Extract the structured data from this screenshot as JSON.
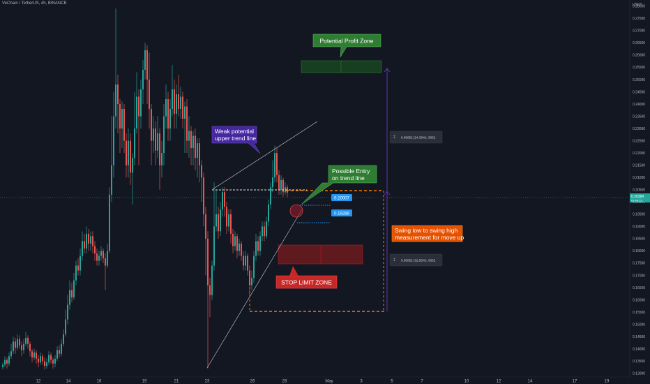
{
  "header": {
    "symbol_line": "VeChain / TetherUS, 4h, BINANCE"
  },
  "price_scale": {
    "unit": "USDT",
    "current_price": "0.20384",
    "current_price_sub": "01:46:13",
    "ticks": [
      "0.28000",
      "0.27500",
      "0.27000",
      "0.26500",
      "0.26000",
      "0.25500",
      "0.25000",
      "0.24500",
      "0.24000",
      "0.23500",
      "0.23000",
      "0.22500",
      "0.22000",
      "0.21500",
      "0.21000",
      "0.20500",
      "0.20000",
      "0.19500",
      "0.19000",
      "0.18500",
      "0.18000",
      "0.17500",
      "0.17000",
      "0.16500",
      "0.16000",
      "0.15500",
      "0.15000",
      "0.14500",
      "0.14000",
      "0.13500",
      "0.13000"
    ]
  },
  "time_axis": {
    "labels": [
      "12",
      "14",
      "16",
      "19",
      "21",
      "23",
      "26",
      "28",
      "May",
      "3",
      "5",
      "7",
      "10",
      "12",
      "14",
      "17",
      "19"
    ]
  },
  "annotations": {
    "profit_zone": "Potential Profit Zone",
    "weak_line_1": "Weak potential",
    "weak_line_2": "upper trend line",
    "entry_1": "Possible Entry",
    "entry_2": "on trend line",
    "stop_zone": "STOP LIMIT ZONE",
    "swing_1": "Swing low to swing high",
    "swing_2": "measurement for move up",
    "price_tag_1": "0.20007",
    "price_tag_2": "0.19288",
    "measure_up": "0.05052 (24.39%), 5052",
    "measure_down": "0.05052 (32.55%), 5052"
  },
  "colors": {
    "background": "#131722",
    "up": "#26a69a",
    "down": "#ef5350",
    "profit": "#2e7d32",
    "stop": "#b71c1c",
    "purple": "#5e35b1",
    "orange": "#f57c00",
    "blue_tag": "#2196f3"
  },
  "chart_data": {
    "type": "candlestick",
    "title": "VeChain / TetherUS, 4h, BINANCE",
    "ylabel": "USDT",
    "ylim": [
      0.1285,
      0.2825
    ],
    "candles": [
      {
        "x": 4,
        "o": 0.1325,
        "c": 0.1335,
        "h": 0.1345,
        "l": 0.1315
      },
      {
        "x": 7,
        "o": 0.1335,
        "c": 0.1355,
        "h": 0.137,
        "l": 0.1325
      },
      {
        "x": 10,
        "o": 0.1355,
        "c": 0.134,
        "h": 0.1365,
        "l": 0.132
      },
      {
        "x": 13,
        "o": 0.134,
        "c": 0.137,
        "h": 0.1385,
        "l": 0.133
      },
      {
        "x": 16,
        "o": 0.137,
        "c": 0.139,
        "h": 0.142,
        "l": 0.136
      },
      {
        "x": 19,
        "o": 0.139,
        "c": 0.143,
        "h": 0.145,
        "l": 0.138
      },
      {
        "x": 22,
        "o": 0.143,
        "c": 0.1405,
        "h": 0.1445,
        "l": 0.138
      },
      {
        "x": 25,
        "o": 0.1405,
        "c": 0.144,
        "h": 0.146,
        "l": 0.1395
      },
      {
        "x": 28,
        "o": 0.144,
        "c": 0.1415,
        "h": 0.1455,
        "l": 0.14
      },
      {
        "x": 31,
        "o": 0.1415,
        "c": 0.1395,
        "h": 0.143,
        "l": 0.137
      },
      {
        "x": 34,
        "o": 0.1395,
        "c": 0.142,
        "h": 0.144,
        "l": 0.138
      },
      {
        "x": 37,
        "o": 0.142,
        "c": 0.1445,
        "h": 0.147,
        "l": 0.141
      },
      {
        "x": 40,
        "o": 0.1445,
        "c": 0.142,
        "h": 0.1455,
        "l": 0.14
      },
      {
        "x": 43,
        "o": 0.142,
        "c": 0.139,
        "h": 0.143,
        "l": 0.137
      },
      {
        "x": 46,
        "o": 0.139,
        "c": 0.1365,
        "h": 0.14,
        "l": 0.1345
      },
      {
        "x": 49,
        "o": 0.1365,
        "c": 0.1385,
        "h": 0.14,
        "l": 0.1355
      },
      {
        "x": 52,
        "o": 0.1385,
        "c": 0.136,
        "h": 0.1395,
        "l": 0.134
      },
      {
        "x": 55,
        "o": 0.136,
        "c": 0.1345,
        "h": 0.1375,
        "l": 0.1325
      },
      {
        "x": 58,
        "o": 0.1345,
        "c": 0.137,
        "h": 0.1385,
        "l": 0.1335
      },
      {
        "x": 61,
        "o": 0.137,
        "c": 0.135,
        "h": 0.138,
        "l": 0.1335
      },
      {
        "x": 64,
        "o": 0.135,
        "c": 0.133,
        "h": 0.1365,
        "l": 0.1315
      },
      {
        "x": 67,
        "o": 0.133,
        "c": 0.1345,
        "h": 0.136,
        "l": 0.132
      },
      {
        "x": 70,
        "o": 0.1345,
        "c": 0.1375,
        "h": 0.139,
        "l": 0.1335
      },
      {
        "x": 73,
        "o": 0.1375,
        "c": 0.1355,
        "h": 0.1385,
        "l": 0.134
      },
      {
        "x": 76,
        "o": 0.1355,
        "c": 0.134,
        "h": 0.1365,
        "l": 0.132
      },
      {
        "x": 79,
        "o": 0.134,
        "c": 0.136,
        "h": 0.1375,
        "l": 0.1325
      },
      {
        "x": 82,
        "o": 0.136,
        "c": 0.1395,
        "h": 0.141,
        "l": 0.135
      },
      {
        "x": 85,
        "o": 0.1395,
        "c": 0.138,
        "h": 0.1415,
        "l": 0.1365
      },
      {
        "x": 88,
        "o": 0.138,
        "c": 0.142,
        "h": 0.144,
        "l": 0.137
      },
      {
        "x": 91,
        "o": 0.142,
        "c": 0.146,
        "h": 0.148,
        "l": 0.141
      },
      {
        "x": 94,
        "o": 0.146,
        "c": 0.152,
        "h": 0.156,
        "l": 0.145
      },
      {
        "x": 97,
        "o": 0.152,
        "c": 0.158,
        "h": 0.162,
        "l": 0.15
      },
      {
        "x": 100,
        "o": 0.158,
        "c": 0.164,
        "h": 0.168,
        "l": 0.156
      },
      {
        "x": 103,
        "o": 0.164,
        "c": 0.161,
        "h": 0.167,
        "l": 0.159
      },
      {
        "x": 106,
        "o": 0.161,
        "c": 0.168,
        "h": 0.171,
        "l": 0.16
      },
      {
        "x": 109,
        "o": 0.168,
        "c": 0.174,
        "h": 0.176,
        "l": 0.166
      },
      {
        "x": 112,
        "o": 0.174,
        "c": 0.172,
        "h": 0.177,
        "l": 0.17
      },
      {
        "x": 115,
        "o": 0.172,
        "c": 0.178,
        "h": 0.181,
        "l": 0.17
      },
      {
        "x": 118,
        "o": 0.178,
        "c": 0.184,
        "h": 0.188,
        "l": 0.176
      },
      {
        "x": 121,
        "o": 0.184,
        "c": 0.181,
        "h": 0.187,
        "l": 0.179
      },
      {
        "x": 124,
        "o": 0.181,
        "c": 0.187,
        "h": 0.19,
        "l": 0.179
      },
      {
        "x": 127,
        "o": 0.187,
        "c": 0.183,
        "h": 0.189,
        "l": 0.18
      },
      {
        "x": 130,
        "o": 0.183,
        "c": 0.186,
        "h": 0.188,
        "l": 0.18
      },
      {
        "x": 133,
        "o": 0.186,
        "c": 0.182,
        "h": 0.188,
        "l": 0.179
      },
      {
        "x": 136,
        "o": 0.182,
        "c": 0.179,
        "h": 0.184,
        "l": 0.176
      },
      {
        "x": 139,
        "o": 0.179,
        "c": 0.176,
        "h": 0.181,
        "l": 0.174
      },
      {
        "x": 142,
        "o": 0.176,
        "c": 0.178,
        "h": 0.18,
        "l": 0.174
      },
      {
        "x": 145,
        "o": 0.178,
        "c": 0.18,
        "h": 0.182,
        "l": 0.176
      },
      {
        "x": 148,
        "o": 0.18,
        "c": 0.177,
        "h": 0.181,
        "l": 0.175
      },
      {
        "x": 151,
        "o": 0.177,
        "c": 0.174,
        "h": 0.179,
        "l": 0.164
      },
      {
        "x": 154,
        "o": 0.174,
        "c": 0.18,
        "h": 0.183,
        "l": 0.173
      },
      {
        "x": 157,
        "o": 0.18,
        "c": 0.203,
        "h": 0.206,
        "l": 0.179
      },
      {
        "x": 160,
        "o": 0.203,
        "c": 0.215,
        "h": 0.235,
        "l": 0.2
      },
      {
        "x": 163,
        "o": 0.215,
        "c": 0.235,
        "h": 0.245,
        "l": 0.21
      },
      {
        "x": 166,
        "o": 0.235,
        "c": 0.248,
        "h": 0.279,
        "l": 0.23
      },
      {
        "x": 169,
        "o": 0.248,
        "c": 0.24,
        "h": 0.252,
        "l": 0.228
      },
      {
        "x": 172,
        "o": 0.24,
        "c": 0.23,
        "h": 0.242,
        "l": 0.22
      },
      {
        "x": 175,
        "o": 0.23,
        "c": 0.238,
        "h": 0.241,
        "l": 0.222
      },
      {
        "x": 178,
        "o": 0.238,
        "c": 0.225,
        "h": 0.24,
        "l": 0.22
      },
      {
        "x": 181,
        "o": 0.225,
        "c": 0.215,
        "h": 0.228,
        "l": 0.21
      },
      {
        "x": 184,
        "o": 0.215,
        "c": 0.225,
        "h": 0.23,
        "l": 0.21
      },
      {
        "x": 187,
        "o": 0.225,
        "c": 0.212,
        "h": 0.228,
        "l": 0.207
      },
      {
        "x": 190,
        "o": 0.212,
        "c": 0.218,
        "h": 0.22,
        "l": 0.199
      },
      {
        "x": 193,
        "o": 0.218,
        "c": 0.23,
        "h": 0.245,
        "l": 0.215
      },
      {
        "x": 196,
        "o": 0.23,
        "c": 0.243,
        "h": 0.253,
        "l": 0.228
      },
      {
        "x": 199,
        "o": 0.243,
        "c": 0.235,
        "h": 0.246,
        "l": 0.215
      },
      {
        "x": 202,
        "o": 0.235,
        "c": 0.246,
        "h": 0.25,
        "l": 0.23
      },
      {
        "x": 205,
        "o": 0.246,
        "c": 0.254,
        "h": 0.258,
        "l": 0.24
      },
      {
        "x": 208,
        "o": 0.254,
        "c": 0.262,
        "h": 0.265,
        "l": 0.25
      },
      {
        "x": 211,
        "o": 0.262,
        "c": 0.25,
        "h": 0.264,
        "l": 0.24
      },
      {
        "x": 214,
        "o": 0.25,
        "c": 0.238,
        "h": 0.261,
        "l": 0.23
      },
      {
        "x": 217,
        "o": 0.238,
        "c": 0.225,
        "h": 0.24,
        "l": 0.215
      },
      {
        "x": 220,
        "o": 0.225,
        "c": 0.23,
        "h": 0.235,
        "l": 0.22
      },
      {
        "x": 223,
        "o": 0.23,
        "c": 0.221,
        "h": 0.233,
        "l": 0.215
      },
      {
        "x": 226,
        "o": 0.221,
        "c": 0.228,
        "h": 0.235,
        "l": 0.218
      },
      {
        "x": 229,
        "o": 0.228,
        "c": 0.215,
        "h": 0.23,
        "l": 0.205
      },
      {
        "x": 232,
        "o": 0.215,
        "c": 0.22,
        "h": 0.225,
        "l": 0.21
      },
      {
        "x": 235,
        "o": 0.22,
        "c": 0.235,
        "h": 0.24,
        "l": 0.215
      },
      {
        "x": 238,
        "o": 0.235,
        "c": 0.242,
        "h": 0.248,
        "l": 0.23
      },
      {
        "x": 241,
        "o": 0.242,
        "c": 0.23,
        "h": 0.245,
        "l": 0.225
      },
      {
        "x": 244,
        "o": 0.23,
        "c": 0.238,
        "h": 0.242,
        "l": 0.225
      },
      {
        "x": 247,
        "o": 0.238,
        "c": 0.246,
        "h": 0.256,
        "l": 0.235
      },
      {
        "x": 250,
        "o": 0.246,
        "c": 0.236,
        "h": 0.25,
        "l": 0.23
      },
      {
        "x": 253,
        "o": 0.236,
        "c": 0.244,
        "h": 0.248,
        "l": 0.23
      },
      {
        "x": 256,
        "o": 0.244,
        "c": 0.238,
        "h": 0.252,
        "l": 0.235
      },
      {
        "x": 259,
        "o": 0.238,
        "c": 0.243,
        "h": 0.247,
        "l": 0.234
      },
      {
        "x": 262,
        "o": 0.243,
        "c": 0.234,
        "h": 0.245,
        "l": 0.23
      },
      {
        "x": 265,
        "o": 0.234,
        "c": 0.239,
        "h": 0.241,
        "l": 0.22
      },
      {
        "x": 268,
        "o": 0.239,
        "c": 0.225,
        "h": 0.242,
        "l": 0.22
      },
      {
        "x": 271,
        "o": 0.225,
        "c": 0.229,
        "h": 0.235,
        "l": 0.218
      },
      {
        "x": 274,
        "o": 0.229,
        "c": 0.222,
        "h": 0.231,
        "l": 0.215
      },
      {
        "x": 277,
        "o": 0.222,
        "c": 0.227,
        "h": 0.229,
        "l": 0.215
      },
      {
        "x": 280,
        "o": 0.227,
        "c": 0.218,
        "h": 0.23,
        "l": 0.213
      },
      {
        "x": 283,
        "o": 0.218,
        "c": 0.224,
        "h": 0.226,
        "l": 0.21
      },
      {
        "x": 286,
        "o": 0.224,
        "c": 0.215,
        "h": 0.226,
        "l": 0.208
      },
      {
        "x": 289,
        "o": 0.215,
        "c": 0.21,
        "h": 0.217,
        "l": 0.2
      },
      {
        "x": 292,
        "o": 0.21,
        "c": 0.195,
        "h": 0.212,
        "l": 0.19
      },
      {
        "x": 295,
        "o": 0.195,
        "c": 0.185,
        "h": 0.198,
        "l": 0.17
      },
      {
        "x": 298,
        "o": 0.185,
        "c": 0.166,
        "h": 0.188,
        "l": 0.132
      },
      {
        "x": 301,
        "o": 0.166,
        "c": 0.162,
        "h": 0.169,
        "l": 0.153
      },
      {
        "x": 304,
        "o": 0.162,
        "c": 0.174,
        "h": 0.176,
        "l": 0.16
      },
      {
        "x": 307,
        "o": 0.174,
        "c": 0.19,
        "h": 0.208,
        "l": 0.172
      },
      {
        "x": 310,
        "o": 0.19,
        "c": 0.195,
        "h": 0.205,
        "l": 0.188
      },
      {
        "x": 313,
        "o": 0.195,
        "c": 0.188,
        "h": 0.198,
        "l": 0.185
      },
      {
        "x": 316,
        "o": 0.188,
        "c": 0.197,
        "h": 0.2,
        "l": 0.186
      },
      {
        "x": 319,
        "o": 0.197,
        "c": 0.204,
        "h": 0.206,
        "l": 0.194
      },
      {
        "x": 322,
        "o": 0.204,
        "c": 0.198,
        "h": 0.206,
        "l": 0.194
      },
      {
        "x": 325,
        "o": 0.198,
        "c": 0.19,
        "h": 0.2,
        "l": 0.187
      },
      {
        "x": 328,
        "o": 0.19,
        "c": 0.195,
        "h": 0.197,
        "l": 0.188
      },
      {
        "x": 331,
        "o": 0.195,
        "c": 0.187,
        "h": 0.197,
        "l": 0.183
      },
      {
        "x": 334,
        "o": 0.187,
        "c": 0.182,
        "h": 0.189,
        "l": 0.179
      },
      {
        "x": 337,
        "o": 0.182,
        "c": 0.186,
        "h": 0.188,
        "l": 0.18
      },
      {
        "x": 340,
        "o": 0.186,
        "c": 0.18,
        "h": 0.187,
        "l": 0.177
      },
      {
        "x": 343,
        "o": 0.18,
        "c": 0.183,
        "h": 0.185,
        "l": 0.178
      },
      {
        "x": 346,
        "o": 0.183,
        "c": 0.178,
        "h": 0.184,
        "l": 0.176
      },
      {
        "x": 349,
        "o": 0.178,
        "c": 0.174,
        "h": 0.18,
        "l": 0.172
      },
      {
        "x": 352,
        "o": 0.174,
        "c": 0.178,
        "h": 0.18,
        "l": 0.172
      },
      {
        "x": 355,
        "o": 0.178,
        "c": 0.172,
        "h": 0.179,
        "l": 0.17
      },
      {
        "x": 358,
        "o": 0.172,
        "c": 0.166,
        "h": 0.174,
        "l": 0.162
      },
      {
        "x": 361,
        "o": 0.166,
        "c": 0.169,
        "h": 0.172,
        "l": 0.164
      },
      {
        "x": 364,
        "o": 0.169,
        "c": 0.178,
        "h": 0.18,
        "l": 0.167
      },
      {
        "x": 367,
        "o": 0.178,
        "c": 0.184,
        "h": 0.187,
        "l": 0.176
      },
      {
        "x": 370,
        "o": 0.184,
        "c": 0.18,
        "h": 0.186,
        "l": 0.178
      },
      {
        "x": 373,
        "o": 0.18,
        "c": 0.186,
        "h": 0.188,
        "l": 0.178
      },
      {
        "x": 376,
        "o": 0.186,
        "c": 0.19,
        "h": 0.192,
        "l": 0.184
      },
      {
        "x": 379,
        "o": 0.19,
        "c": 0.186,
        "h": 0.192,
        "l": 0.184
      },
      {
        "x": 382,
        "o": 0.186,
        "c": 0.192,
        "h": 0.194,
        "l": 0.185
      },
      {
        "x": 385,
        "o": 0.192,
        "c": 0.199,
        "h": 0.201,
        "l": 0.19
      },
      {
        "x": 388,
        "o": 0.199,
        "c": 0.206,
        "h": 0.208,
        "l": 0.197
      },
      {
        "x": 391,
        "o": 0.206,
        "c": 0.21,
        "h": 0.217,
        "l": 0.204
      },
      {
        "x": 394,
        "o": 0.21,
        "c": 0.22,
        "h": 0.223,
        "l": 0.208
      },
      {
        "x": 397,
        "o": 0.22,
        "c": 0.211,
        "h": 0.222,
        "l": 0.208
      },
      {
        "x": 400,
        "o": 0.211,
        "c": 0.205,
        "h": 0.213,
        "l": 0.203
      },
      {
        "x": 403,
        "o": 0.205,
        "c": 0.209,
        "h": 0.211,
        "l": 0.203
      },
      {
        "x": 406,
        "o": 0.209,
        "c": 0.204,
        "h": 0.21,
        "l": 0.202
      },
      {
        "x": 409,
        "o": 0.204,
        "c": 0.206,
        "h": 0.208,
        "l": 0.203
      },
      {
        "x": 412,
        "o": 0.206,
        "c": 0.2038,
        "h": 0.207,
        "l": 0.202
      }
    ]
  }
}
